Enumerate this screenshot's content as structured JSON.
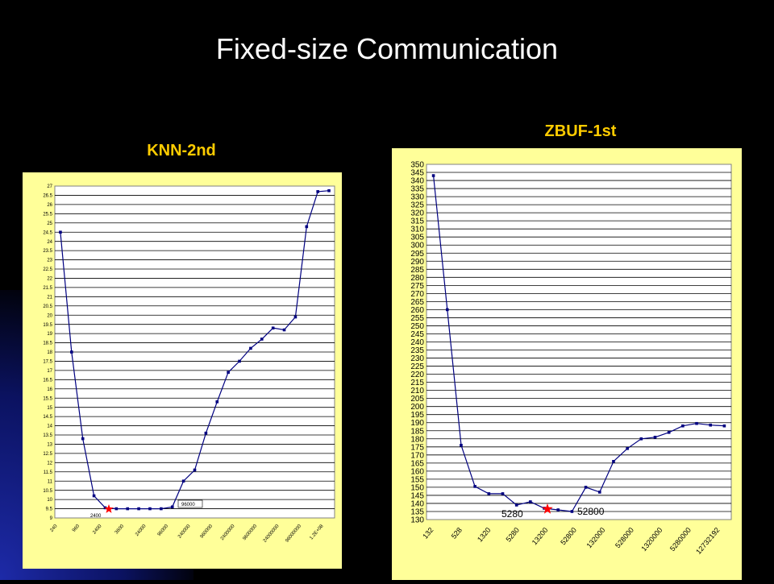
{
  "slide": {
    "title": "Fixed-size  Communication"
  },
  "colors": {
    "background": "#000000",
    "panel": "#ffff99",
    "plot_area": "#ffffff",
    "line": "#000080",
    "label": "#ffcc00",
    "star": "#ff0000"
  },
  "chart_data": [
    {
      "type": "line",
      "title": "KNN-2nd",
      "xlabel": "",
      "ylabel": "",
      "ylim": [
        9,
        27
      ],
      "y_ticks": [
        "9",
        "9.5",
        "10",
        "10.5",
        "11",
        "11.5",
        "12",
        "12.5",
        "13",
        "13.5",
        "14",
        "14.5",
        "15",
        "15.5",
        "16",
        "16.5",
        "17",
        "17.5",
        "18",
        "18.5",
        "19",
        "19.5",
        "20",
        "20.5",
        "21",
        "21.5",
        "22",
        "22.5",
        "23",
        "23.5",
        "24",
        "24.5",
        "25",
        "25.5",
        "26",
        "26.5",
        "27"
      ],
      "x_ticks": [
        "240",
        "960",
        "2400",
        "3600",
        "24000",
        "96000",
        "240000",
        "960000",
        "2400000",
        "9600000",
        "24000000",
        "96000000",
        "1.2E+08"
      ],
      "values": [
        24.5,
        18,
        13.3,
        10.2,
        9.55,
        9.5,
        9.5,
        9.5,
        9.5,
        9.5,
        9.6,
        11,
        11.6,
        13.6,
        15.3,
        16.9,
        17.5,
        18.2,
        18.7,
        19.3,
        19.2,
        19.9,
        24.8,
        26.7,
        26.75
      ],
      "annotations": [
        {
          "text": "2400",
          "marker": "star"
        },
        {
          "text": "96000"
        }
      ],
      "grid": true
    },
    {
      "type": "line",
      "title": "ZBUF-1st",
      "xlabel": "",
      "ylabel": "",
      "ylim": [
        130,
        350
      ],
      "y_ticks": [
        "130",
        "135",
        "140",
        "145",
        "150",
        "155",
        "160",
        "165",
        "170",
        "175",
        "180",
        "185",
        "190",
        "195",
        "200",
        "205",
        "210",
        "215",
        "220",
        "225",
        "230",
        "235",
        "240",
        "245",
        "250",
        "255",
        "260",
        "265",
        "270",
        "275",
        "280",
        "285",
        "290",
        "295",
        "300",
        "305",
        "310",
        "315",
        "320",
        "325",
        "330",
        "335",
        "340",
        "345",
        "350"
      ],
      "x_ticks": [
        "132",
        "528",
        "1320",
        "5280",
        "13200",
        "52800",
        "132000",
        "528000",
        "1320000",
        "5280000",
        "12732192"
      ],
      "values": [
        343,
        260,
        176,
        150.5,
        146,
        146,
        139,
        141,
        137,
        136,
        135,
        150,
        147,
        166,
        174,
        180,
        181,
        184,
        188,
        189.5,
        188.5,
        188
      ],
      "annotations": [
        {
          "text": "5280"
        },
        {
          "text": "52800",
          "marker": "star"
        }
      ],
      "grid": true
    }
  ]
}
